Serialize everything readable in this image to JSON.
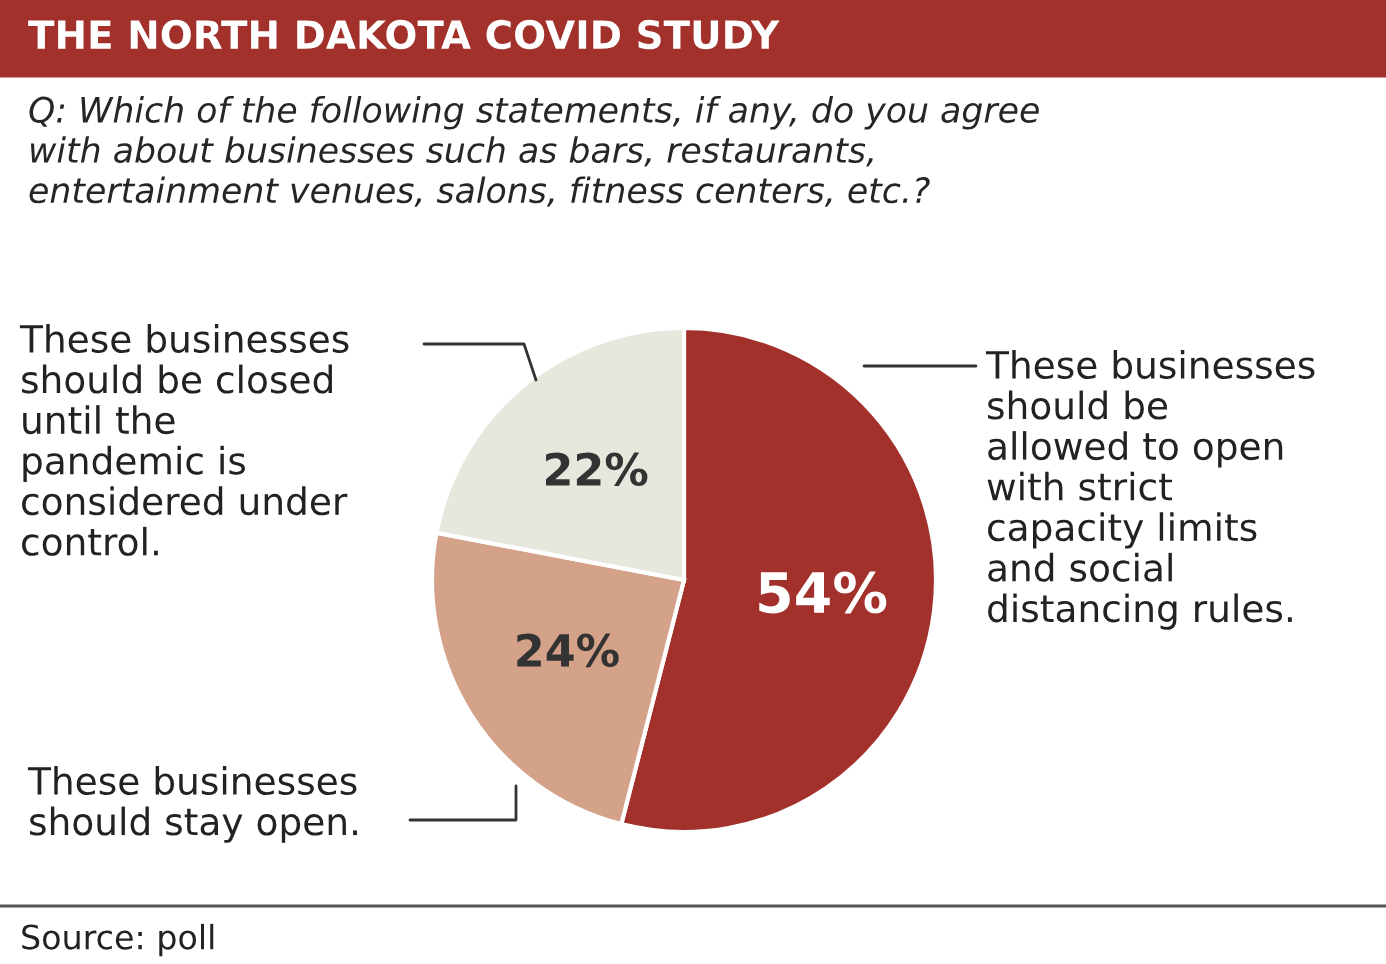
{
  "chart_data": {
    "type": "pie",
    "title": "THE NORTH DAKOTA COVID STUDY",
    "subtitle": "Q: Which of the following statements, if any, do you agree\nwith about businesses such as bars, restaurants,\nentertainment venues, salons, fitness centers, etc.?",
    "categories": [
      "These businesses\nshould be\nallowed to open\nwith strict\ncapacity limits\nand social\ndistancing rules.",
      "These businesses\nshould stay open.",
      "These businesses\nshould be closed\nuntil the\npandemic is\nconsidered under\ncontrol."
    ],
    "values": [
      54,
      24,
      22
    ],
    "colors": [
      "#a3312b",
      "#d4a189",
      "#e8e7de"
    ],
    "value_labels": [
      "54%",
      "24%",
      "22%"
    ],
    "annotations": [
      "Source: poll"
    ]
  }
}
